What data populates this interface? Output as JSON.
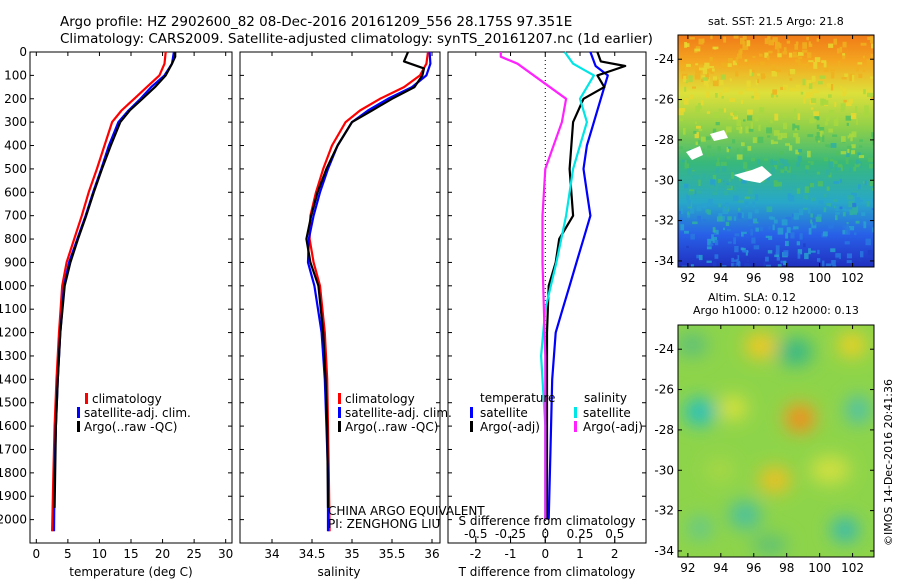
{
  "title": {
    "line1": "Argo profile: HZ 2902600_82 08-Dec-2016 20161209_556 28.175S 97.351E",
    "line2": "Climatology: CARS2009. Satellite-adjusted climatology: synTS_20161207.nc (1d earlier)"
  },
  "depth_ticks": [
    "0",
    "100",
    "200",
    "300",
    "400",
    "500",
    "600",
    "700",
    "800",
    "900",
    "1000",
    "1100",
    "1200",
    "1300",
    "1400",
    "1500",
    "1600",
    "1700",
    "1800",
    "1900",
    "2000"
  ],
  "colors": {
    "climatology": "#ff0000",
    "satellite": "#0000ff",
    "argo": "#000000",
    "cyan": "#00e5e5",
    "magenta": "#ff22ff"
  },
  "chart_data": [
    {
      "type": "line",
      "panel": "temperature",
      "xlabel": "temperature (deg C)",
      "ylabel": "",
      "xlim": [
        -1,
        31
      ],
      "ylim": [
        2100,
        0
      ],
      "xticks": [
        "0",
        "5",
        "10",
        "15",
        "20",
        "25",
        "30"
      ],
      "legend": [
        "climatology",
        "satellite-adj. clim.",
        "Argo(..raw -QC)"
      ],
      "series": [
        {
          "name": "climatology",
          "color": "#ff0000",
          "x": [
            20.5,
            20.3,
            19.5,
            17.5,
            15.5,
            13.5,
            12.0,
            10.8,
            9.6,
            8.3,
            7.2,
            6.0,
            4.8,
            4.1,
            3.6,
            3.2,
            2.9,
            2.7,
            2.5
          ],
          "y": [
            0,
            50,
            100,
            150,
            200,
            250,
            300,
            400,
            500,
            600,
            700,
            800,
            900,
            1000,
            1200,
            1400,
            1600,
            1800,
            2050
          ]
        },
        {
          "name": "satellite-adj. clim.",
          "color": "#0000ff",
          "x": [
            21.8,
            21.5,
            20.3,
            18.2,
            16.5,
            14.6,
            13.0,
            11.5,
            10.3,
            9.0,
            7.8,
            6.5,
            5.2,
            4.4,
            3.8,
            3.4,
            3.1,
            2.9,
            2.8
          ],
          "y": [
            0,
            50,
            100,
            150,
            200,
            250,
            300,
            400,
            500,
            600,
            700,
            800,
            900,
            1000,
            1200,
            1400,
            1600,
            1800,
            2050
          ]
        },
        {
          "name": "Argo(..raw -QC)",
          "color": "#000000",
          "x": [
            22.0,
            22.0,
            21.5,
            20.5,
            18.8,
            16.8,
            14.8,
            13.3,
            11.8,
            10.4,
            9.1,
            7.9,
            6.6,
            5.4,
            4.5,
            3.8,
            3.4,
            3.1,
            2.9
          ],
          "y": [
            0,
            20,
            50,
            100,
            150,
            200,
            250,
            300,
            400,
            500,
            600,
            700,
            800,
            900,
            1000,
            1200,
            1400,
            1600,
            1950
          ]
        }
      ]
    },
    {
      "type": "line",
      "panel": "salinity",
      "xlabel": "salinity",
      "ylabel": "",
      "xlim": [
        33.6,
        36.1
      ],
      "ylim": [
        2100,
        0
      ],
      "xticks": [
        "34",
        "34.5",
        "35",
        "35.5",
        "36"
      ],
      "legend": [
        "climatology",
        "satellite-adj. clim.",
        "Argo(..raw -QC)"
      ],
      "annotations": [
        "CHINA ARGO EQUIVALENT",
        "PI: ZENGHONG LIU"
      ],
      "series": [
        {
          "name": "climatology",
          "color": "#ff0000",
          "x": [
            35.95,
            35.93,
            35.85,
            35.65,
            35.35,
            35.1,
            34.92,
            34.75,
            34.64,
            34.55,
            34.48,
            34.47,
            34.52,
            34.6,
            34.66,
            34.69,
            34.7,
            34.71,
            34.72
          ],
          "y": [
            0,
            50,
            100,
            150,
            200,
            250,
            300,
            400,
            500,
            600,
            700,
            800,
            900,
            1000,
            1200,
            1400,
            1600,
            1800,
            2050
          ]
        },
        {
          "name": "satellite-adj. clim.",
          "color": "#0000ff",
          "x": [
            35.97,
            35.98,
            35.93,
            35.75,
            35.45,
            35.2,
            35.0,
            34.82,
            34.7,
            34.6,
            34.52,
            34.46,
            34.45,
            34.53,
            34.62,
            34.66,
            34.68,
            34.7,
            34.7
          ],
          "y": [
            0,
            50,
            100,
            150,
            200,
            250,
            300,
            400,
            500,
            600,
            700,
            800,
            900,
            1000,
            1200,
            1400,
            1600,
            1800,
            2050
          ]
        },
        {
          "name": "Argo(..raw -QC)",
          "color": "#000000",
          "x": [
            35.7,
            35.65,
            35.9,
            35.88,
            35.78,
            35.5,
            35.25,
            35.0,
            34.82,
            34.68,
            34.57,
            34.49,
            34.43,
            34.48,
            34.58,
            34.64,
            34.67,
            34.69,
            34.7
          ],
          "y": [
            0,
            40,
            70,
            100,
            150,
            200,
            250,
            300,
            400,
            500,
            600,
            700,
            800,
            900,
            1000,
            1200,
            1400,
            1600,
            1950
          ]
        }
      ]
    },
    {
      "type": "line",
      "panel": "difference",
      "xlabel": "T difference from climatology",
      "xlabel_top": "S difference from climatology",
      "xlim": [
        -2.8,
        2.9
      ],
      "ylim": [
        2100,
        0
      ],
      "xticks": [
        "-2",
        "-1",
        "0",
        "1",
        "2"
      ],
      "xticks_top": [
        "-0.5",
        "-0.25",
        "0",
        "0.25",
        "0.5"
      ],
      "legend_headers": [
        "temperature",
        "salinity"
      ],
      "legend": [
        "satellite",
        "Argo(-adj)",
        "satellite",
        "Argo(-adj)"
      ],
      "series": [
        {
          "name": "satellite",
          "quantity": "temperature",
          "color": "#0000ff",
          "x": [
            1.3,
            1.45,
            1.8,
            1.6,
            1.4,
            1.2,
            1.1,
            1.2,
            1.3,
            1.1,
            0.9,
            0.7,
            0.5,
            0.3,
            0.2,
            0.15,
            0.1
          ],
          "y": [
            0,
            60,
            100,
            200,
            300,
            400,
            500,
            600,
            700,
            800,
            900,
            1000,
            1100,
            1200,
            1400,
            1700,
            2000
          ]
        },
        {
          "name": "Argo(-adj)",
          "quantity": "temperature",
          "color": "#000000",
          "x": [
            1.5,
            1.6,
            2.3,
            1.5,
            1.7,
            1.1,
            0.8,
            0.7,
            0.8,
            0.4,
            0.3,
            0.1,
            0.05,
            0.05,
            0.05,
            0.05
          ],
          "y": [
            0,
            40,
            60,
            100,
            150,
            200,
            300,
            500,
            700,
            800,
            900,
            1000,
            1200,
            1500,
            1800,
            2000
          ]
        },
        {
          "name": "satellite",
          "quantity": "salinity",
          "color": "#00e5e5",
          "x": [
            0.14,
            0.2,
            0.35,
            0.25,
            0.3,
            0.2,
            0.15,
            0.08,
            0.0,
            -0.03,
            0.0,
            0.0,
            0.0
          ],
          "y": [
            0,
            50,
            100,
            200,
            300,
            500,
            700,
            900,
            1100,
            1300,
            1600,
            1900,
            2000
          ]
        },
        {
          "name": "Argo(-adj)",
          "quantity": "salinity",
          "color": "#ff22ff",
          "x": [
            -0.32,
            -0.32,
            -0.2,
            0.15,
            0.12,
            0.0,
            -0.02,
            -0.02,
            0.0,
            0.0
          ],
          "y": [
            0,
            20,
            50,
            200,
            300,
            500,
            700,
            900,
            1300,
            2000
          ]
        }
      ]
    },
    {
      "type": "heatmap",
      "panel": "sst-map",
      "title": "sat. SST: 21.5  Argo: 21.8",
      "xticks": [
        "92",
        "94",
        "96",
        "98",
        "100",
        "102"
      ],
      "yticks": [
        "-24",
        "-26",
        "-28",
        "-30",
        "-32",
        "-34"
      ],
      "xlim": [
        91.4,
        103.3
      ],
      "ylim": [
        -34.3,
        -22.8
      ]
    },
    {
      "type": "heatmap",
      "panel": "sla-map",
      "title": "Altim. SLA: 0.12",
      "subtitle": "Argo h1000: 0.12 h2000: 0.13",
      "xticks": [
        "92",
        "94",
        "96",
        "98",
        "100",
        "102"
      ],
      "yticks": [
        "-24",
        "-26",
        "-28",
        "-30",
        "-32",
        "-34"
      ],
      "xlim": [
        91.4,
        103.3
      ],
      "ylim": [
        -34.3,
        -22.8
      ]
    }
  ],
  "credit": "©IMOS 14-Dec-2016 20:41:36"
}
